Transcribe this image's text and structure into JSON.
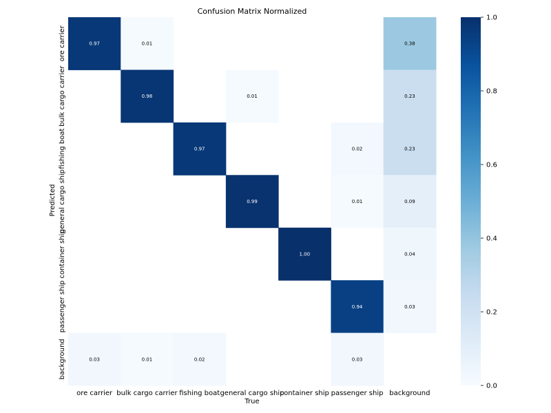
{
  "chart_data": {
    "type": "heatmap",
    "title": "Confusion Matrix Normalized",
    "xlabel": "True",
    "ylabel": "Predicted",
    "x_categories": [
      "ore carrier",
      "bulk cargo carrier",
      "fishing boat",
      "general cargo ship",
      "container ship",
      "passenger ship",
      "background"
    ],
    "y_categories": [
      "ore carrier",
      "bulk cargo carrier",
      "fishing boat",
      "general cargo ship",
      "container ship",
      "passenger ship",
      "background"
    ],
    "values": [
      [
        0.97,
        0.01,
        null,
        null,
        null,
        null,
        0.38
      ],
      [
        null,
        0.98,
        null,
        0.01,
        null,
        null,
        0.23
      ],
      [
        null,
        null,
        0.97,
        null,
        null,
        0.02,
        0.23
      ],
      [
        null,
        null,
        null,
        0.99,
        null,
        0.01,
        0.09
      ],
      [
        null,
        null,
        null,
        null,
        1.0,
        null,
        0.04
      ],
      [
        null,
        null,
        null,
        null,
        null,
        0.94,
        0.03
      ],
      [
        0.03,
        0.01,
        0.02,
        null,
        null,
        0.03,
        null
      ]
    ],
    "colorbar": {
      "range": [
        0.0,
        1.0
      ],
      "ticks": [
        "0.0",
        "0.2",
        "0.4",
        "0.6",
        "0.8",
        "1.0"
      ],
      "colormap": "Blues"
    }
  }
}
